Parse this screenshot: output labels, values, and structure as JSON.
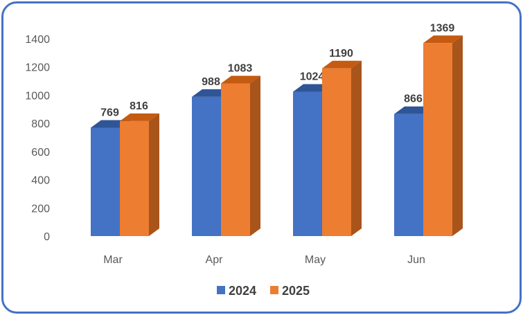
{
  "chart_data": {
    "type": "bar",
    "categories": [
      "Mar",
      "Apr",
      "May",
      "Jun"
    ],
    "series": [
      {
        "name": "2024",
        "values": [
          769,
          988,
          1024,
          866
        ],
        "color": "#4472c4",
        "top_color": "#2f5597",
        "side_color": "#2f5597"
      },
      {
        "name": "2025",
        "values": [
          816,
          1083,
          1190,
          1369
        ],
        "color": "#ed7d31",
        "top_color": "#c55a11",
        "side_color": "#a9541b"
      }
    ],
    "y_ticks": [
      "0",
      "200",
      "400",
      "600",
      "800",
      "1000",
      "1200",
      "1400"
    ],
    "ylim": [
      0,
      1400
    ],
    "grid": false,
    "three_d": true,
    "legend_position": "bottom",
    "title": "",
    "xlabel": "",
    "ylabel": ""
  }
}
